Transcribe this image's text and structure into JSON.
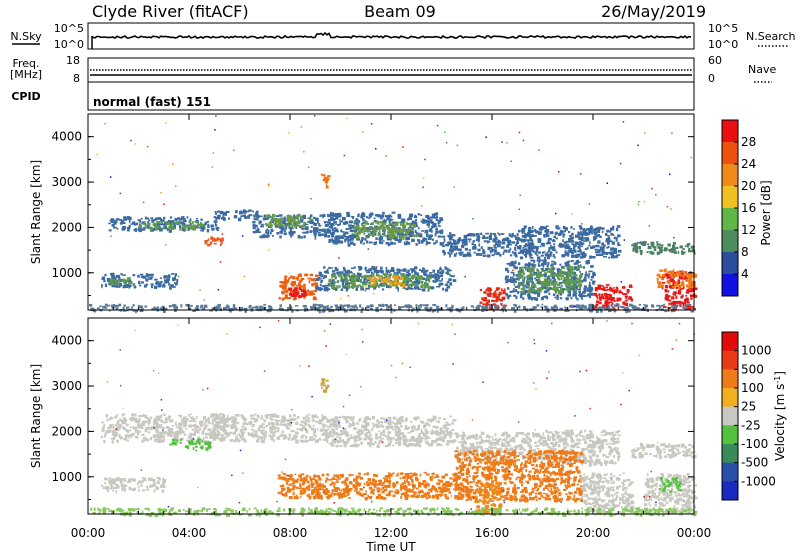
{
  "header": {
    "station": "Clyde River (fitACF)",
    "beam": "Beam 09",
    "date": "26/May/2019"
  },
  "strip": {
    "nsky_label": "N.Sky",
    "nsearch_label": "N.Search",
    "log_top": "10^5",
    "log_bottom": "10^0",
    "freq_label": "Freq.",
    "freq_unit": "[MHz]",
    "freq_ticks": [
      "18",
      "8"
    ],
    "nave_label": "Nave",
    "nave_ticks": [
      "60",
      "0"
    ],
    "cpid_label": "CPID",
    "cpid_value": "normal (fast) 151"
  },
  "chart_data": [
    {
      "type": "heatmap",
      "name": "power",
      "ylabel": "Slant Range [km]",
      "xlabel": "Time UT",
      "xticks": [
        "00:00",
        "04:00",
        "08:00",
        "12:00",
        "16:00",
        "20:00",
        "00:00"
      ],
      "yticks": [
        "1000",
        "2000",
        "3000",
        "4000"
      ],
      "xlim_hours": [
        0,
        24
      ],
      "ylim_km": [
        180,
        4500
      ],
      "colorbar": {
        "label": "Power [dB]",
        "ticks": [
          "4",
          "8",
          "12",
          "16",
          "20",
          "24",
          "28"
        ],
        "colors": [
          "#1010e0",
          "#2a4d9c",
          "#4d8c5c",
          "#5fb843",
          "#f0c020",
          "#f08a18",
          "#ee5010",
          "#e81010"
        ]
      },
      "bands": [
        {
          "t0": 0.8,
          "t1": 5.2,
          "r0": 1950,
          "r1": 2250,
          "color": "#3a6aa0"
        },
        {
          "t0": 2.0,
          "t1": 4.5,
          "r0": 1980,
          "r1": 2150,
          "color": "#5f9a4a"
        },
        {
          "t0": 4.5,
          "t1": 5.3,
          "r0": 1600,
          "r1": 1800,
          "color": "#e85a20"
        },
        {
          "t0": 5.0,
          "t1": 6.7,
          "r0": 2200,
          "r1": 2400,
          "color": "#3a6aa0"
        },
        {
          "t0": 6.5,
          "t1": 9.5,
          "r0": 1800,
          "r1": 2300,
          "color": "#3a6aa0"
        },
        {
          "t0": 7.0,
          "t1": 8.8,
          "r0": 2050,
          "r1": 2300,
          "color": "#6a9a45"
        },
        {
          "t0": 9.5,
          "t1": 14.0,
          "r0": 1650,
          "r1": 2350,
          "color": "#3a6aa0"
        },
        {
          "t0": 10.5,
          "t1": 13.0,
          "r0": 1800,
          "r1": 2150,
          "color": "#6a9a45"
        },
        {
          "t0": 14.0,
          "t1": 17.5,
          "r0": 1400,
          "r1": 1900,
          "color": "#3a6aa0"
        },
        {
          "t0": 17.0,
          "t1": 21.0,
          "r0": 1350,
          "r1": 2050,
          "color": "#3a6aa0"
        },
        {
          "t0": 21.5,
          "t1": 24.0,
          "r0": 1450,
          "r1": 1700,
          "color": "#4a8060"
        },
        {
          "t0": 0.5,
          "t1": 3.5,
          "r0": 700,
          "r1": 1000,
          "color": "#3a6aa0"
        },
        {
          "t0": 0.8,
          "t1": 1.8,
          "r0": 750,
          "r1": 900,
          "color": "#5f9a4a"
        },
        {
          "t0": 7.5,
          "t1": 9.0,
          "r0": 450,
          "r1": 1000,
          "color": "#ee6010"
        },
        {
          "t0": 7.8,
          "t1": 8.6,
          "r0": 450,
          "r1": 700,
          "color": "#e81818"
        },
        {
          "t0": 9.0,
          "t1": 14.5,
          "r0": 650,
          "r1": 1150,
          "color": "#3a6aa0"
        },
        {
          "t0": 9.5,
          "t1": 13.5,
          "r0": 700,
          "r1": 1000,
          "color": "#5f9a4a"
        },
        {
          "t0": 11.0,
          "t1": 12.5,
          "r0": 750,
          "r1": 950,
          "color": "#e8a020"
        },
        {
          "t0": 15.5,
          "t1": 16.5,
          "r0": 200,
          "r1": 700,
          "color": "#e82a14"
        },
        {
          "t0": 16.5,
          "t1": 20.0,
          "r0": 450,
          "r1": 1300,
          "color": "#3a6aa0"
        },
        {
          "t0": 17.0,
          "t1": 19.5,
          "r0": 600,
          "r1": 1150,
          "color": "#5f9a4a"
        },
        {
          "t0": 20.0,
          "t1": 21.5,
          "r0": 200,
          "r1": 750,
          "color": "#e81818"
        },
        {
          "t0": 22.7,
          "t1": 24.0,
          "r0": 200,
          "r1": 1050,
          "color": "#e81818"
        },
        {
          "t0": 22.5,
          "t1": 24.0,
          "r0": 700,
          "r1": 1100,
          "color": "#ee7a14"
        },
        {
          "t0": 9.2,
          "t1": 9.5,
          "r0": 2900,
          "r1": 3200,
          "color": "#ee7010"
        },
        {
          "t0": 0,
          "t1": 24,
          "r0": 180,
          "r1": 320,
          "color": "#5a7a98"
        }
      ]
    },
    {
      "type": "heatmap",
      "name": "velocity",
      "ylabel": "Slant Range [km]",
      "xlabel": "Time UT",
      "xticks": [
        "00:00",
        "04:00",
        "08:00",
        "12:00",
        "16:00",
        "20:00",
        "00:00"
      ],
      "yticks": [
        "1000",
        "2000",
        "3000",
        "4000"
      ],
      "xlim_hours": [
        0,
        24
      ],
      "ylim_km": [
        180,
        4500
      ],
      "colorbar": {
        "label": "Velocity [m s^-1]",
        "ticks": [
          "1000",
          "500",
          "100",
          "25",
          "-25",
          "-100",
          "-500",
          "-1000"
        ],
        "colors": [
          "#1a2abf",
          "#2a4fa8",
          "#3a8a5a",
          "#54c040",
          "#c8c8c0",
          "#f0b020",
          "#ee7a18",
          "#e83a14",
          "#e00a0a"
        ]
      },
      "bands": [
        {
          "t0": 0.5,
          "t1": 5.5,
          "r0": 1800,
          "r1": 2400,
          "color": "#c8c8c0"
        },
        {
          "t0": 3.2,
          "t1": 4.8,
          "r0": 1650,
          "r1": 1850,
          "color": "#54c040"
        },
        {
          "t0": 5.0,
          "t1": 9.5,
          "r0": 1800,
          "r1": 2400,
          "color": "#c8c8c0"
        },
        {
          "t0": 9.5,
          "t1": 14.5,
          "r0": 1700,
          "r1": 2350,
          "color": "#c8c8c0"
        },
        {
          "t0": 14.5,
          "t1": 18.0,
          "r0": 1400,
          "r1": 2000,
          "color": "#c8c8c0"
        },
        {
          "t0": 18.0,
          "t1": 21.0,
          "r0": 1300,
          "r1": 2050,
          "color": "#c8c8c0"
        },
        {
          "t0": 21.5,
          "t1": 24.0,
          "r0": 1450,
          "r1": 1750,
          "color": "#c8c8c0"
        },
        {
          "t0": 0.5,
          "t1": 3.0,
          "r0": 700,
          "r1": 1000,
          "color": "#c8c8c0"
        },
        {
          "t0": 7.5,
          "t1": 15.0,
          "r0": 550,
          "r1": 1100,
          "color": "#ee7a18"
        },
        {
          "t0": 14.5,
          "t1": 19.5,
          "r0": 500,
          "r1": 1600,
          "color": "#ee7a18"
        },
        {
          "t0": 15.3,
          "t1": 16.3,
          "r0": 200,
          "r1": 900,
          "color": "#ee8a1a"
        },
        {
          "t0": 19.5,
          "t1": 21.5,
          "r0": 200,
          "r1": 1100,
          "color": "#c8c8c0"
        },
        {
          "t0": 22.0,
          "t1": 24.0,
          "r0": 200,
          "r1": 1100,
          "color": "#c8c8c0"
        },
        {
          "t0": 22.6,
          "t1": 23.4,
          "r0": 700,
          "r1": 1000,
          "color": "#54c040"
        },
        {
          "t0": 9.2,
          "t1": 9.5,
          "r0": 2900,
          "r1": 3200,
          "color": "#c8a040"
        },
        {
          "t0": 0,
          "t1": 24,
          "r0": 180,
          "r1": 330,
          "color": "#8ac860"
        }
      ]
    }
  ]
}
